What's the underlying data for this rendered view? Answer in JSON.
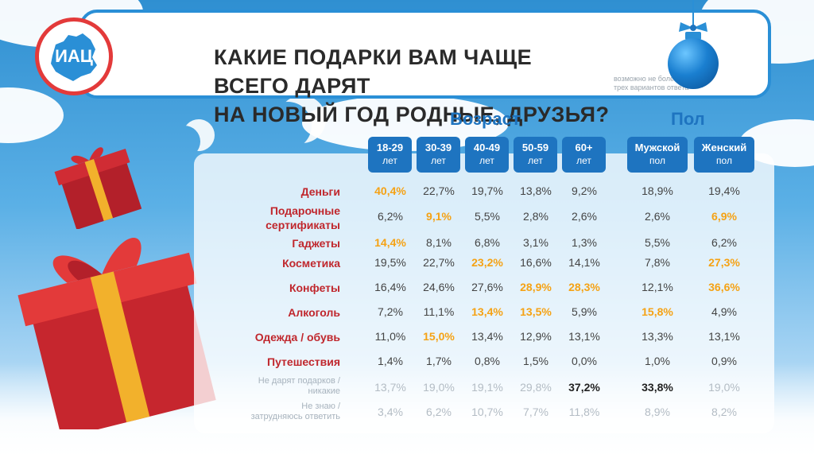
{
  "header": {
    "logo_text": "ИАЦ",
    "title_line1": "КАКИЕ ПОДАРКИ ВАМ ЧАЩЕ ВСЕГО ДАРЯТ",
    "title_line2": "НА НОВЫЙ ГОД РОДНЫЕ, ДРУЗЬЯ?",
    "subtitle_line1": "возможно не более",
    "subtitle_line2": "трех вариантов ответа"
  },
  "colors": {
    "accent": "#1e74c0",
    "highlight": "#f5a214",
    "label": "#c0272d"
  },
  "chart_data": {
    "type": "table",
    "title": "КАКИЕ ПОДАРКИ ВАМ ЧАЩЕ ВСЕГО ДАРЯТ НА НОВЫЙ ГОД РОДНЫЕ, ДРУЗЬЯ?",
    "groups": [
      {
        "name": "Возраст",
        "columns": [
          {
            "label": "18-29",
            "sub": "лет"
          },
          {
            "label": "30-39",
            "sub": "лет"
          },
          {
            "label": "40-49",
            "sub": "лет"
          },
          {
            "label": "50-59",
            "sub": "лет"
          },
          {
            "label": "60+",
            "sub": "лет"
          }
        ]
      },
      {
        "name": "Пол",
        "columns": [
          {
            "label": "Мужской",
            "sub": "пол"
          },
          {
            "label": "Женский",
            "sub": "пол"
          }
        ]
      }
    ],
    "rows": [
      {
        "label": "Деньги",
        "values": [
          "40,4%",
          "22,7%",
          "19,7%",
          "13,8%",
          "9,2%",
          "18,9%",
          "19,4%"
        ],
        "highlight": [
          0
        ]
      },
      {
        "label_line1": "Подарочные",
        "label_line2": "сертификаты",
        "values": [
          "6,2%",
          "9,1%",
          "5,5%",
          "2,8%",
          "2,6%",
          "2,6%",
          "6,9%"
        ],
        "highlight": [
          1,
          6
        ]
      },
      {
        "label": "Гаджеты",
        "values": [
          "14,4%",
          "8,1%",
          "6,8%",
          "3,1%",
          "1,3%",
          "5,5%",
          "6,2%"
        ],
        "highlight": [
          0
        ]
      },
      {
        "label": "Косметика",
        "values": [
          "19,5%",
          "22,7%",
          "23,2%",
          "16,6%",
          "14,1%",
          "7,8%",
          "27,3%"
        ],
        "highlight": [
          2,
          6
        ]
      },
      {
        "label": "Конфеты",
        "values": [
          "16,4%",
          "24,6%",
          "27,6%",
          "28,9%",
          "28,3%",
          "12,1%",
          "36,6%"
        ],
        "highlight": [
          3,
          4,
          6
        ]
      },
      {
        "label": "Алкоголь",
        "values": [
          "7,2%",
          "11,1%",
          "13,4%",
          "13,5%",
          "5,9%",
          "15,8%",
          "4,9%"
        ],
        "highlight": [
          2,
          3,
          5
        ]
      },
      {
        "label": "Одежда / обувь",
        "values": [
          "11,0%",
          "15,0%",
          "13,4%",
          "12,9%",
          "13,1%",
          "13,3%",
          "13,1%"
        ],
        "highlight": [
          1
        ]
      },
      {
        "label": "Путешествия",
        "values": [
          "1,4%",
          "1,7%",
          "0,8%",
          "1,5%",
          "0,0%",
          "1,0%",
          "0,9%"
        ],
        "highlight": []
      },
      {
        "label_line1": "Не дарят подарков /",
        "label_line2": "никакие",
        "values": [
          "13,7%",
          "19,0%",
          "19,1%",
          "29,8%",
          "37,2%",
          "33,8%",
          "19,0%"
        ],
        "muted": true,
        "bold": [
          4,
          5
        ]
      },
      {
        "label_line1": "Не знаю /",
        "label_line2": "затрудняюсь ответить",
        "values": [
          "3,4%",
          "6,2%",
          "10,7%",
          "7,7%",
          "11,8%",
          "8,9%",
          "8,2%"
        ],
        "muted": true
      }
    ]
  }
}
